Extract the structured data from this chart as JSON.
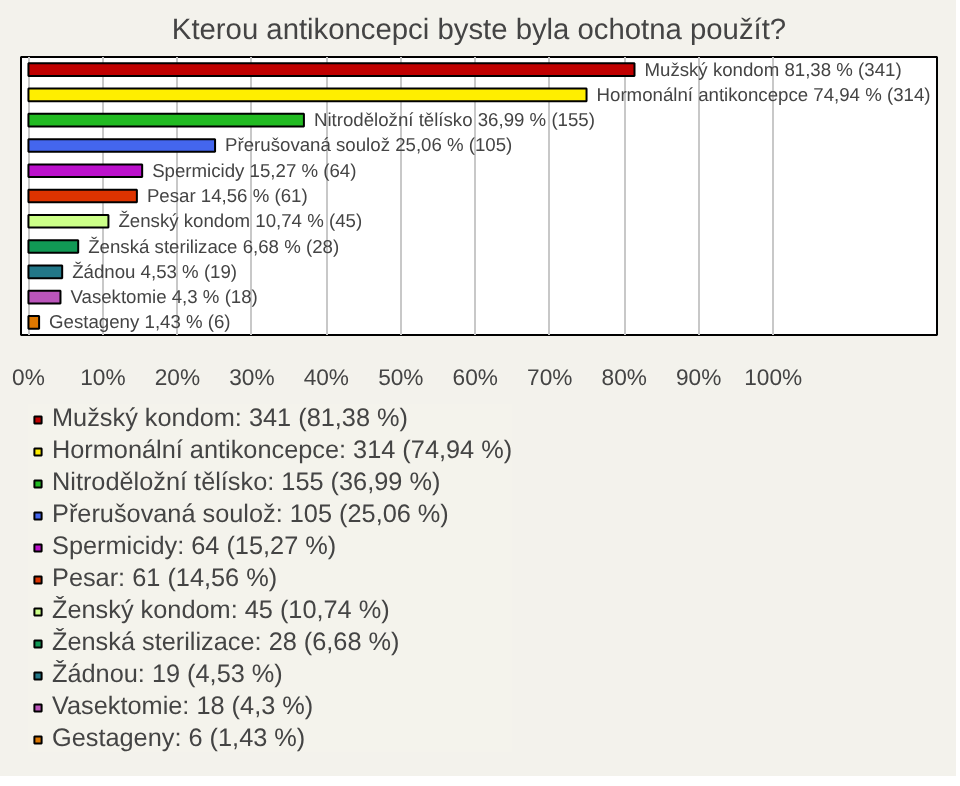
{
  "chart_data": {
    "type": "bar",
    "orientation": "horizontal",
    "title": "Kterou antikoncepci byste byla ochotna použít?",
    "categories": [
      null,
      null,
      null,
      null,
      null,
      null,
      null,
      null,
      null,
      null,
      null
    ],
    "series": [
      {
        "name": "Mužský kondom: 341 (81,38 %)",
        "color": "#c00000",
        "values": [
          81.38,
          null,
          null,
          null,
          null,
          null,
          null,
          null,
          null,
          null,
          null
        ],
        "value_labels": [
          "Mužský kondom 81,38 % (341)",
          null,
          null,
          null,
          null,
          null,
          null,
          null,
          null,
          null,
          null
        ]
      },
      {
        "name": "Hormonální antikoncepce: 314 (74,94 %)",
        "color": "#ffee00",
        "values": [
          null,
          74.94,
          null,
          null,
          null,
          null,
          null,
          null,
          null,
          null,
          null
        ],
        "value_labels": [
          null,
          "Hormonální antikoncepce 74,94 % (314)",
          null,
          null,
          null,
          null,
          null,
          null,
          null,
          null,
          null
        ]
      },
      {
        "name": "Nitroděložní tělísko: 155 (36,99 %)",
        "color": "#22bb22",
        "values": [
          null,
          null,
          36.99,
          null,
          null,
          null,
          null,
          null,
          null,
          null,
          null
        ],
        "value_labels": [
          null,
          null,
          "Nitroděložní tělísko 36,99 % (155)",
          null,
          null,
          null,
          null,
          null,
          null,
          null,
          null
        ]
      },
      {
        "name": "Přerušovaná soulož: 105 (25,06 %)",
        "color": "#4466ee",
        "values": [
          null,
          null,
          null,
          25.06,
          null,
          null,
          null,
          null,
          null,
          null,
          null
        ],
        "value_labels": [
          null,
          null,
          null,
          "Přerušovaná soulož 25,06 % (105)",
          null,
          null,
          null,
          null,
          null,
          null,
          null
        ]
      },
      {
        "name": "Spermicidy: 64 (15,27 %)",
        "color": "#bb11cc",
        "values": [
          null,
          null,
          null,
          null,
          15.27,
          null,
          null,
          null,
          null,
          null,
          null
        ],
        "value_labels": [
          null,
          null,
          null,
          null,
          "Spermicidy 15,27 % (64)",
          null,
          null,
          null,
          null,
          null,
          null
        ]
      },
      {
        "name": "Pesar: 61 (14,56 %)",
        "color": "#dd3300",
        "values": [
          null,
          null,
          null,
          null,
          null,
          14.56,
          null,
          null,
          null,
          null,
          null
        ],
        "value_labels": [
          null,
          null,
          null,
          null,
          null,
          "Pesar 14,56 % (61)",
          null,
          null,
          null,
          null,
          null
        ]
      },
      {
        "name": "Ženský kondom: 45 (10,74 %)",
        "color": "#ccff88",
        "values": [
          null,
          null,
          null,
          null,
          null,
          null,
          10.74,
          null,
          null,
          null,
          null
        ],
        "value_labels": [
          null,
          null,
          null,
          null,
          null,
          null,
          "Ženský kondom 10,74 % (45)",
          null,
          null,
          null,
          null
        ]
      },
      {
        "name": "Ženská sterilizace: 28 (6,68 %)",
        "color": "#119955",
        "values": [
          null,
          null,
          null,
          null,
          null,
          null,
          null,
          6.68,
          null,
          null,
          null
        ],
        "value_labels": [
          null,
          null,
          null,
          null,
          null,
          null,
          null,
          "Ženská sterilizace 6,68 % (28)",
          null,
          null,
          null
        ]
      },
      {
        "name": "Žádnou: 19 (4,53 %)",
        "color": "#227788",
        "values": [
          null,
          null,
          null,
          null,
          null,
          null,
          null,
          null,
          4.53,
          null,
          null
        ],
        "value_labels": [
          null,
          null,
          null,
          null,
          null,
          null,
          null,
          null,
          "Žádnou 4,53 % (19)",
          null,
          null
        ]
      },
      {
        "name": "Vasektomie: 18 (4,3 %)",
        "color": "#bb55bb",
        "values": [
          null,
          null,
          null,
          null,
          null,
          null,
          null,
          null,
          null,
          4.3,
          null
        ],
        "value_labels": [
          null,
          null,
          null,
          null,
          null,
          null,
          null,
          null,
          null,
          "Vasektomie 4,3 % (18)",
          null
        ]
      },
      {
        "name": "Gestageny: 6 (1,43 %)",
        "color": "#dd7700",
        "values": [
          null,
          null,
          null,
          null,
          null,
          null,
          null,
          null,
          null,
          null,
          1.43
        ],
        "value_labels": [
          null,
          null,
          null,
          null,
          null,
          null,
          null,
          null,
          null,
          null,
          "Gestageny 1,43 % (6)"
        ]
      }
    ],
    "xlim": [
      -1,
      122
    ],
    "xticks": [
      {
        "value": 0,
        "label": "0%"
      },
      {
        "value": 10,
        "label": "10%"
      },
      {
        "value": 20,
        "label": "20%"
      },
      {
        "value": 30,
        "label": "30%"
      },
      {
        "value": 40,
        "label": "40%"
      },
      {
        "value": 50,
        "label": "50%"
      },
      {
        "value": 60,
        "label": "60%"
      },
      {
        "value": 70,
        "label": "70%"
      },
      {
        "value": 80,
        "label": "80%"
      },
      {
        "value": 90,
        "label": "90%"
      },
      {
        "value": 100,
        "label": "100%"
      }
    ],
    "grid": "x",
    "legend": "bottom",
    "tick_labels": "x"
  }
}
